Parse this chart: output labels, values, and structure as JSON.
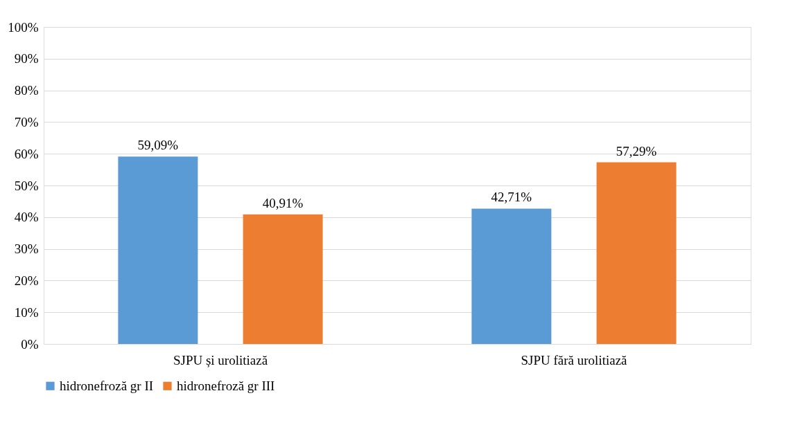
{
  "chart_data": {
    "type": "bar",
    "categories": [
      "SJPU și urolitiază",
      "SJPU fără urolitiază"
    ],
    "series": [
      {
        "name": "hidronefroză gr II",
        "color": "#5b9bd5",
        "values": [
          59.09,
          42.71
        ],
        "value_labels": [
          "59,09%",
          "42,71%"
        ]
      },
      {
        "name": "hidronefroză gr III",
        "color": "#ed7d31",
        "values": [
          40.91,
          57.29
        ],
        "value_labels": [
          "40,91%",
          "57,29%"
        ]
      }
    ],
    "ylim": [
      0,
      100
    ],
    "yticks": [
      {
        "value": 0,
        "label": "0%"
      },
      {
        "value": 10,
        "label": "10%"
      },
      {
        "value": 20,
        "label": "20%"
      },
      {
        "value": 30,
        "label": "30%"
      },
      {
        "value": 40,
        "label": "40%"
      },
      {
        "value": 50,
        "label": "50%"
      },
      {
        "value": 60,
        "label": "60%"
      },
      {
        "value": 70,
        "label": "70%"
      },
      {
        "value": 80,
        "label": "80%"
      },
      {
        "value": 90,
        "label": "90%"
      },
      {
        "value": 100,
        "label": "100%"
      }
    ],
    "grid": "y",
    "legend": "bottom"
  }
}
